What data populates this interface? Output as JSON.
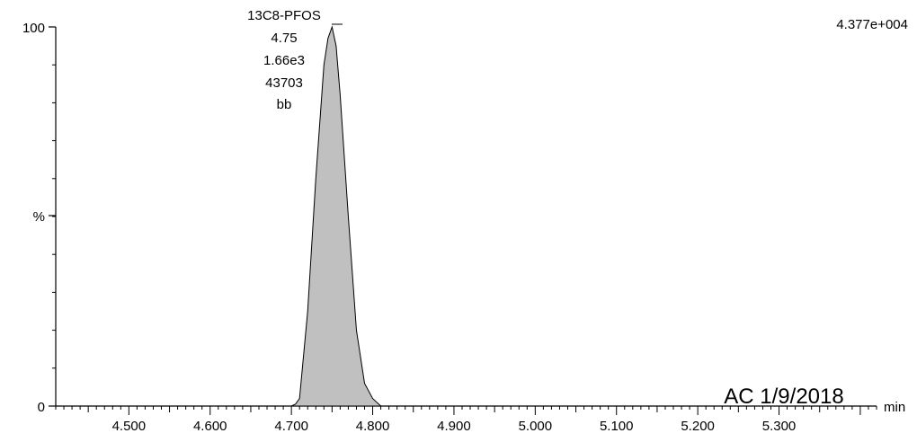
{
  "chart_data": {
    "type": "area",
    "title": "",
    "xlabel": "min",
    "ylabel": "%",
    "xlim": [
      4.41,
      5.42
    ],
    "ylim": [
      0,
      100
    ],
    "x_ticks": [
      "4.500",
      "4.600",
      "4.700",
      "4.800",
      "4.900",
      "5.000",
      "5.100",
      "5.200",
      "5.300"
    ],
    "y_ticks": [
      "0",
      "100"
    ],
    "grid": false,
    "legend": "none",
    "series": [
      {
        "x": [
          4.41,
          4.7,
          4.705,
          4.71,
          4.72,
          4.73,
          4.74,
          4.745,
          4.75,
          4.755,
          4.76,
          4.77,
          4.78,
          4.79,
          4.8,
          4.81,
          5.42
        ],
        "values": [
          0,
          0,
          0.5,
          2,
          25,
          60,
          90,
          97,
          100,
          95,
          82,
          50,
          20,
          6,
          2,
          0,
          0
        ]
      }
    ],
    "fill_color": "#c0c0c0",
    "line_color": "#000000",
    "intensity_label": "4.377e+004",
    "peak": {
      "name": "13C8-PFOS",
      "rt": "4.75",
      "height": "1.66e3",
      "area": "43703",
      "flag": "bb"
    },
    "stamp": "AC 1/9/2018"
  }
}
